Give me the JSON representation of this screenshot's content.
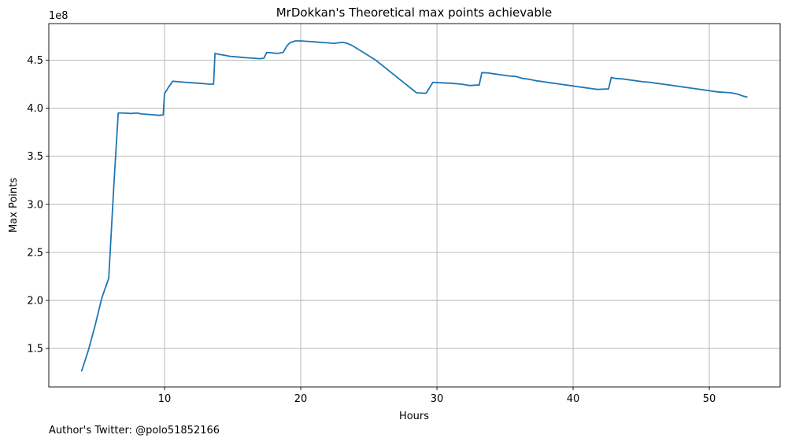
{
  "chart_data": {
    "type": "line",
    "title": "MrDokkan's Theoretical max points achievable",
    "xlabel": "Hours",
    "ylabel": "Max Points",
    "y_offset_text": "1e8",
    "footnote": "Author's Twitter: @polo51852166",
    "xlim": [
      1.5,
      55.2
    ],
    "ylim": [
      110000000.0,
      488000000.0
    ],
    "grid": true,
    "x_ticks": [
      10,
      20,
      30,
      40,
      50
    ],
    "x_tick_labels": [
      "10",
      "20",
      "30",
      "40",
      "50"
    ],
    "y_ticks": [
      150000000.0,
      200000000.0,
      250000000.0,
      300000000.0,
      350000000.0,
      400000000.0,
      450000000.0
    ],
    "y_tick_labels": [
      "1.5",
      "2.0",
      "2.5",
      "3.0",
      "3.5",
      "4.0",
      "4.5"
    ],
    "line_color": "#1f77b4",
    "series": [
      {
        "x": [
          3.9,
          4.4,
          4.9,
          5.4,
          5.9,
          6.3,
          6.6,
          7.0,
          7.5,
          8.0,
          8.3,
          8.8,
          9.3,
          9.6,
          9.9,
          10.0,
          10.3,
          10.6,
          11.0,
          11.5,
          12.0,
          12.5,
          12.9,
          13.3,
          13.6,
          13.7,
          14.0,
          14.4,
          14.8,
          15.2,
          15.6,
          16.0,
          16.5,
          17.0,
          17.3,
          17.5,
          17.9,
          18.3,
          18.7,
          19.0,
          19.2,
          19.6,
          20.0,
          20.5,
          21.0,
          21.4,
          21.9,
          22.4,
          22.8,
          23.1,
          23.4,
          23.8,
          25.5,
          27.0,
          28.5,
          29.2,
          29.7,
          30.2,
          31.0,
          31.8,
          32.4,
          32.9,
          33.1,
          33.3,
          33.8,
          34.3,
          34.8,
          35.3,
          35.8,
          36.3,
          36.8,
          37.3,
          37.8,
          38.3,
          38.8,
          39.3,
          39.8,
          40.3,
          40.8,
          41.3,
          41.8,
          42.4,
          42.6,
          42.8,
          43.1,
          43.6,
          44.1,
          44.6,
          45.1,
          45.6,
          46.1,
          46.6,
          47.1,
          47.6,
          48.1,
          48.6,
          49.1,
          49.6,
          50.1,
          50.6,
          51.1,
          51.6,
          52.1,
          52.5,
          52.8
        ],
        "y": [
          126000000.0,
          148000000.0,
          174000000.0,
          203000000.0,
          223000000.0,
          325000000.0,
          395000000.0,
          395000000.0,
          394500000.0,
          395000000.0,
          394000000.0,
          393500000.0,
          393000000.0,
          392500000.0,
          393000000.0,
          415000000.0,
          422000000.0,
          428000000.0,
          427500000.0,
          427000000.0,
          426500000.0,
          426000000.0,
          425500000.0,
          425000000.0,
          425000000.0,
          457000000.0,
          456000000.0,
          455000000.0,
          454000000.0,
          453500000.0,
          453000000.0,
          452500000.0,
          452000000.0,
          451500000.0,
          452000000.0,
          458000000.0,
          457500000.0,
          457000000.0,
          458000000.0,
          465000000.0,
          468000000.0,
          470000000.0,
          470000000.0,
          469500000.0,
          469000000.0,
          468500000.0,
          468000000.0,
          467500000.0,
          468000000.0,
          468500000.0,
          467500000.0,
          465000000.0,
          450000000.0,
          433000000.0,
          416000000.0,
          415500000.0,
          427000000.0,
          426500000.0,
          426000000.0,
          425000000.0,
          423500000.0,
          424000000.0,
          424000000.0,
          437000000.0,
          436500000.0,
          435500000.0,
          434500000.0,
          433500000.0,
          433000000.0,
          431000000.0,
          430000000.0,
          428500000.0,
          427500000.0,
          426500000.0,
          425500000.0,
          424500000.0,
          423500000.0,
          422500000.0,
          421500000.0,
          420500000.0,
          419500000.0,
          420000000.0,
          420000000.0,
          432000000.0,
          431000000.0,
          430500000.0,
          429500000.0,
          428500000.0,
          427500000.0,
          427000000.0,
          426000000.0,
          425000000.0,
          424000000.0,
          423000000.0,
          422000000.0,
          421000000.0,
          420000000.0,
          419000000.0,
          418000000.0,
          417000000.0,
          416500000.0,
          416000000.0,
          414500000.0,
          412500000.0,
          411500000.0
        ]
      }
    ]
  }
}
